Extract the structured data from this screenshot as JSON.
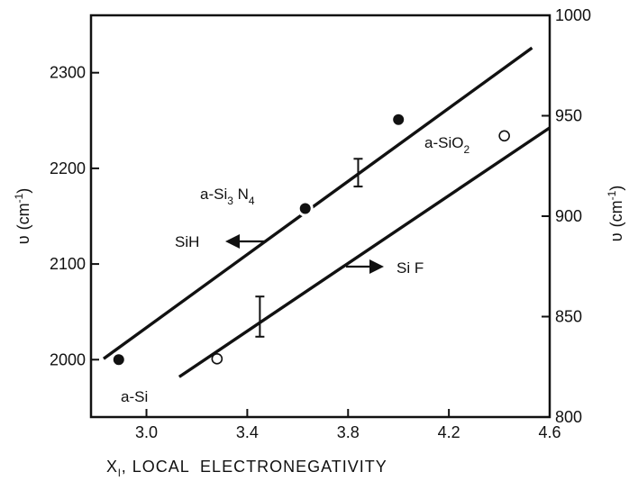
{
  "chart_data": {
    "type": "scatter",
    "xlabel": {
      "symbol": "X",
      "subscript": "l",
      "text": ", LOCAL  ELECTRONEGATIVITY"
    },
    "ylabel_left": {
      "symbol": "υ",
      "unit": "(cm",
      "unit_sup": "-1",
      "unit_close": ")"
    },
    "ylabel_right": {
      "symbol": "υ",
      "unit": "(cm",
      "unit_sup": "-1",
      "unit_close": ")"
    },
    "xlim": [
      2.78,
      4.6
    ],
    "ylim_left": [
      1940,
      2360
    ],
    "ylim_right": [
      800,
      1000
    ],
    "x_ticks": [
      "3.0",
      "3.4",
      "3.8",
      "4.2",
      "4.6"
    ],
    "y_ticks_left": [
      "2000",
      "2100",
      "2200",
      "2300"
    ],
    "y_ticks_right": [
      "800",
      "850",
      "900",
      "950",
      "1000"
    ],
    "series": [
      {
        "name": "SiH",
        "axis": "left",
        "marker": "filled-circle",
        "points": [
          {
            "x": 2.89,
            "y": 2000
          },
          {
            "x": 3.63,
            "y": 2158
          },
          {
            "x": 4.0,
            "y": 2251
          }
        ],
        "fit_line": [
          [
            2.83,
            2001
          ],
          [
            4.53,
            2326
          ]
        ],
        "error_bars": [
          {
            "x": 3.84,
            "y_low": 2181,
            "y_high": 2210
          }
        ]
      },
      {
        "name": "SiF",
        "axis": "right",
        "marker": "open-circle",
        "points": [
          {
            "x": 3.28,
            "y": 829
          },
          {
            "x": 4.42,
            "y": 940
          }
        ],
        "fit_line": [
          [
            3.13,
            820
          ],
          [
            4.6,
            944
          ]
        ],
        "error_bars": [
          {
            "x": 3.45,
            "y_low": 840,
            "y_high": 860
          }
        ]
      }
    ],
    "annotations": [
      {
        "id": "a_si",
        "text": "a-Si"
      },
      {
        "id": "a_si3n4",
        "text": "a-Si",
        "sub1": "3",
        "mid": " N",
        "sub2": "4"
      },
      {
        "id": "a_sio2",
        "text": "a-SiO",
        "sub1": "2"
      },
      {
        "id": "sih",
        "text": "SiH"
      },
      {
        "id": "sif",
        "text": "Si F"
      }
    ]
  }
}
